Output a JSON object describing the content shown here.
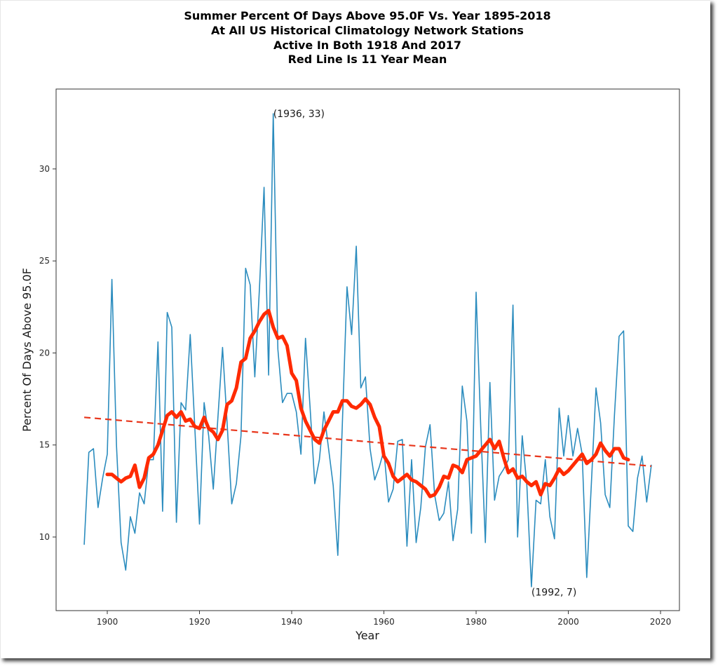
{
  "chart_data": {
    "type": "line",
    "title_lines": [
      "Summer Percent Of Days Above 95.0F Vs. Year 1895-2018",
      "At All US Historical Climatology Network Stations",
      "Active In Both 1918 And 2017",
      "Red Line Is 11 Year Mean"
    ],
    "xlabel": "Year",
    "ylabel": "Percent Of Days Above 95.0F",
    "xlim": [
      1888.9,
      2024.1
    ],
    "ylim": [
      6.0,
      34.34
    ],
    "xticks": [
      1900,
      1920,
      1940,
      1960,
      1980,
      2000,
      2020
    ],
    "yticks": [
      10,
      15,
      20,
      25,
      30
    ],
    "grid": false,
    "legend": "none",
    "colors": {
      "annual": "#2b8cbe",
      "mean": "#ff2a00",
      "trend": "#e8361c"
    },
    "series": [
      {
        "name": "Annual percent of days above 95.0F",
        "style": "thin-blue-line",
        "x_start": 1895,
        "values": [
          9.6,
          14.6,
          14.8,
          11.6,
          13.2,
          14.5,
          24.0,
          15.0,
          9.7,
          8.2,
          11.1,
          10.2,
          12.4,
          11.8,
          14.2,
          14.2,
          20.6,
          11.4,
          22.2,
          21.4,
          10.8,
          17.3,
          16.9,
          21.0,
          15.9,
          10.7,
          17.3,
          15.5,
          12.6,
          16.5,
          20.3,
          16.2,
          11.8,
          12.9,
          15.5,
          24.6,
          23.7,
          18.7,
          23.5,
          29.0,
          18.8,
          33.0,
          20.2,
          17.3,
          17.8,
          17.8,
          16.8,
          14.5,
          20.8,
          17.0,
          12.9,
          14.2,
          16.8,
          14.8,
          12.8,
          9.0,
          16.2,
          23.6,
          21.0,
          25.8,
          18.1,
          18.7,
          14.8,
          13.1,
          13.8,
          14.7,
          11.9,
          12.6,
          15.2,
          15.3,
          9.5,
          14.2,
          9.7,
          11.6,
          14.9,
          16.1,
          12.3,
          10.9,
          11.3,
          13.0,
          9.8,
          11.5,
          18.2,
          16.3,
          10.2,
          23.3,
          16.0,
          9.7,
          18.4,
          12.0,
          13.3,
          13.7,
          14.2,
          22.6,
          10.0,
          15.5,
          12.8,
          7.3,
          12.0,
          11.8,
          14.2,
          11.1,
          9.9,
          17.0,
          14.4,
          16.6,
          14.4,
          15.9,
          14.5,
          7.8,
          12.9,
          18.1,
          16.2,
          12.3,
          11.6,
          16.6,
          20.9,
          21.2,
          10.6,
          10.3,
          13.2,
          14.4,
          11.9,
          13.9
        ]
      },
      {
        "name": "11 Year Mean",
        "style": "thick-red-line",
        "x_start": 1900,
        "values": [
          13.4,
          13.4,
          13.2,
          13.0,
          13.2,
          13.3,
          13.9,
          12.7,
          13.2,
          14.3,
          14.5,
          15.0,
          15.8,
          16.6,
          16.8,
          16.5,
          16.8,
          16.3,
          16.4,
          16.0,
          15.9,
          16.5,
          15.9,
          15.7,
          15.3,
          15.8,
          17.2,
          17.4,
          18.1,
          19.5,
          19.7,
          20.8,
          21.2,
          21.7,
          22.1,
          22.3,
          21.4,
          20.8,
          20.9,
          20.4,
          18.9,
          18.5,
          17.0,
          16.3,
          15.8,
          15.3,
          15.1,
          15.8,
          16.3,
          16.8,
          16.8,
          17.4,
          17.4,
          17.1,
          17.0,
          17.2,
          17.5,
          17.2,
          16.5,
          16.0,
          14.4,
          14.0,
          13.3,
          13.0,
          13.2,
          13.4,
          13.1,
          13.0,
          12.8,
          12.6,
          12.2,
          12.3,
          12.7,
          13.3,
          13.2,
          13.9,
          13.8,
          13.5,
          14.2,
          14.3,
          14.4,
          14.7,
          15.0,
          15.3,
          14.8,
          15.2,
          14.3,
          13.5,
          13.7,
          13.2,
          13.3,
          13.0,
          12.8,
          13.0,
          12.3,
          12.9,
          12.8,
          13.2,
          13.7,
          13.4,
          13.6,
          13.9,
          14.2,
          14.5,
          14.0,
          14.2,
          14.5,
          15.1,
          14.7,
          14.4,
          14.8,
          14.8,
          14.3,
          14.2
        ]
      },
      {
        "name": "Linear trend",
        "style": "dashed-red-line",
        "x": [
          1895,
          2018
        ],
        "values": [
          16.5,
          13.85
        ]
      }
    ],
    "annotations": [
      {
        "text": "(1936, 33)",
        "x": 1936,
        "y": 33
      },
      {
        "text": "(1992, 7)",
        "x": 1992,
        "y": 7
      }
    ]
  }
}
